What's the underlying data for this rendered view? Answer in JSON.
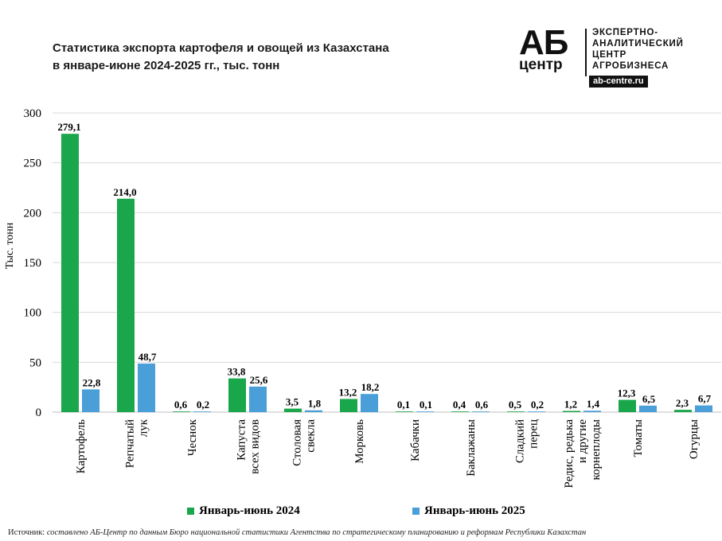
{
  "title": {
    "line1": "Статистика экспорта картофеля и овощей из Казахстана",
    "line2": "в январе-июне 2024-2025 гг., тыс. тонн"
  },
  "logo": {
    "ab": "АБ",
    "center": "центр",
    "line1": "ЭКСПЕРТНО-",
    "line2": "АНАЛИТИЧЕСКИЙ",
    "line3": "ЦЕНТР",
    "line4": "АГРОБИЗНЕСА",
    "url": "ab-centre.ru"
  },
  "source": {
    "label": "Источник:",
    "text": "составлено АБ-Центр по данным Бюро национальной статистики Агентства по стратегическому планированию и реформам Республики Казахстан"
  },
  "chart_data": {
    "type": "bar",
    "ylabel": "Тыс. тонн",
    "ylim": [
      0,
      300
    ],
    "yticks": [
      0,
      50,
      100,
      150,
      200,
      250,
      300
    ],
    "grid": true,
    "legend_position": "bottom",
    "categories": [
      [
        "Картофель"
      ],
      [
        "Репчатый",
        "лук"
      ],
      [
        "Чеснок"
      ],
      [
        "Капуста",
        "всех видов"
      ],
      [
        "Столовая",
        "свекла"
      ],
      [
        "Морковь"
      ],
      [
        "Кабачки"
      ],
      [
        "Баклажаны"
      ],
      [
        "Сладкий",
        "перец"
      ],
      [
        "Редис, редька",
        "и другие",
        "корнеплоды"
      ],
      [
        "Томаты"
      ],
      [
        "Огурцы"
      ]
    ],
    "series": [
      {
        "name": "Январь-июнь 2024",
        "color": "#1aa64a",
        "values": [
          279.1,
          214.0,
          0.6,
          33.8,
          3.5,
          13.2,
          0.1,
          0.4,
          0.5,
          1.2,
          12.3,
          2.3
        ],
        "labels": [
          "279,1",
          "214,0",
          "0,6",
          "33,8",
          "3,5",
          "13,2",
          "0,1",
          "0,4",
          "0,5",
          "1,2",
          "12,3",
          "2,3"
        ]
      },
      {
        "name": "Январь-июнь 2025",
        "color": "#4a9fd8",
        "values": [
          22.8,
          48.7,
          0.2,
          25.6,
          1.8,
          18.2,
          0.1,
          0.6,
          0.2,
          1.4,
          6.5,
          6.7
        ],
        "labels": [
          "22,8",
          "48,7",
          "0,2",
          "25,6",
          "1,8",
          "18,2",
          "0,1",
          "0,6",
          "0,2",
          "1,4",
          "6,5",
          "6,7"
        ]
      }
    ]
  }
}
